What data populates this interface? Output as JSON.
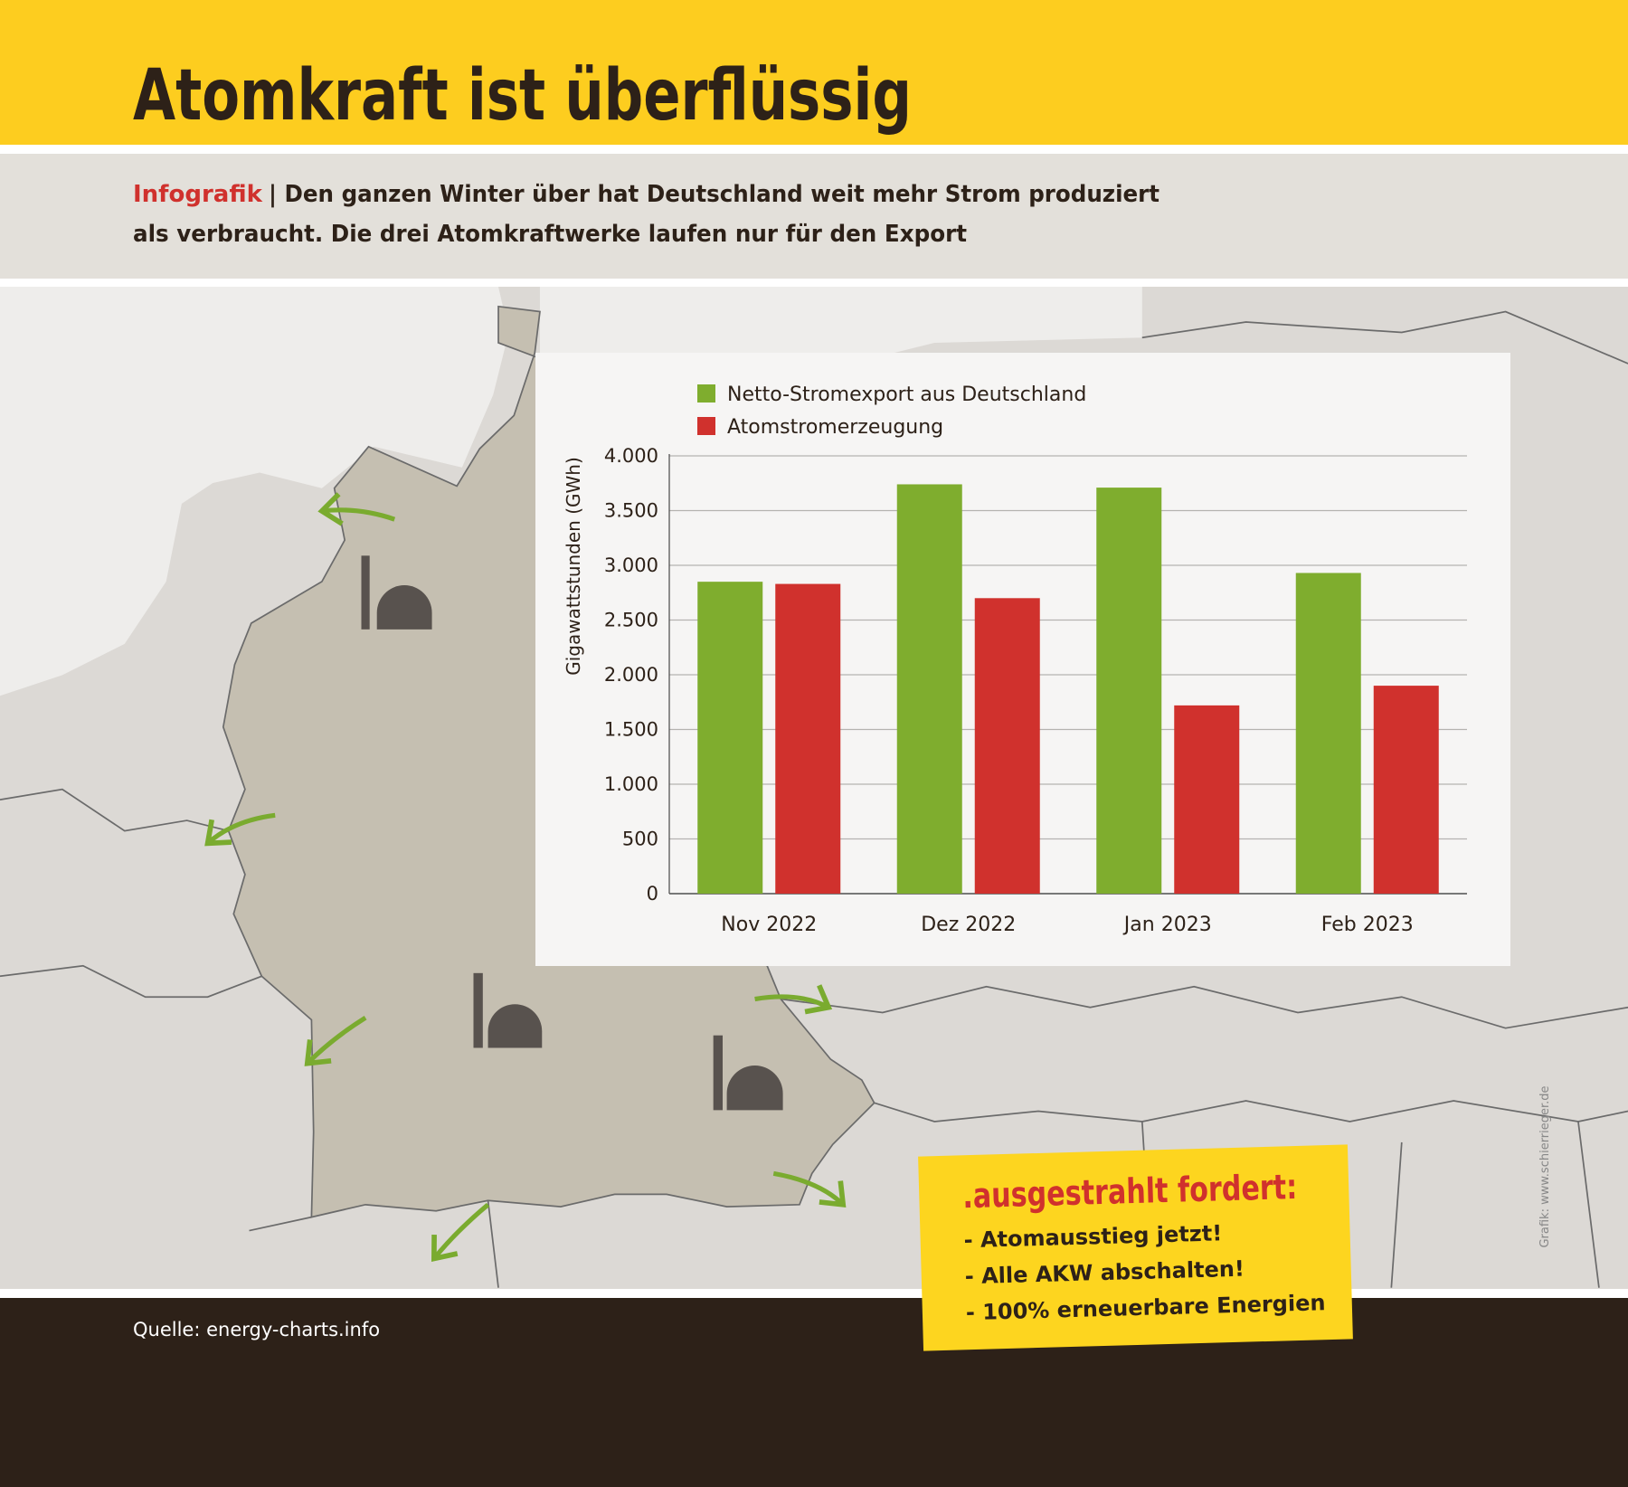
{
  "header": {
    "title": "Atomkraft ist überflüssig"
  },
  "subtitle": {
    "label": "Infografik",
    "line1": "| Den ganzen Winter über hat Deutschland weit mehr Strom produziert",
    "line2": "als verbraucht. Die drei Atomkraftwerke laufen nur für den Export"
  },
  "chart_data": {
    "type": "bar",
    "y_label": "Gigawattstunden (GWh)",
    "categories": [
      "Nov 2022",
      "Dez 2022",
      "Jan 2023",
      "Feb 2023"
    ],
    "series": [
      {
        "name": "Netto-Stromexport aus Deutschland",
        "color": "#7fad2e",
        "values": [
          2850,
          3740,
          3710,
          2930
        ]
      },
      {
        "name": "Atomstromerzeugung",
        "color": "#d0312d",
        "values": [
          2830,
          2700,
          1720,
          1900
        ]
      }
    ],
    "ylim": [
      0,
      4000
    ],
    "yticks": [
      0,
      500,
      {
        "value": 1000,
        "label": "1.000"
      },
      {
        "value": 1500,
        "label": "1.500"
      },
      {
        "value": 2000,
        "label": "2.000"
      },
      {
        "value": 2500,
        "label": "2.500"
      },
      {
        "value": 3000,
        "label": "3.000"
      },
      {
        "value": 3500,
        "label": "3.500"
      },
      {
        "value": 4000,
        "label": "4.000"
      }
    ],
    "grid": true,
    "legend": "top-left"
  },
  "callout": {
    "heading": ".ausgestrahlt fordert:",
    "items": [
      "- Atomausstieg jetzt!",
      "- Alle AKW abschalten!",
      "- 100% erneuerbare Energien"
    ]
  },
  "footer": {
    "source": "Quelle: energy-charts.info",
    "credit": "Grafik: www.schierrieger.de"
  }
}
